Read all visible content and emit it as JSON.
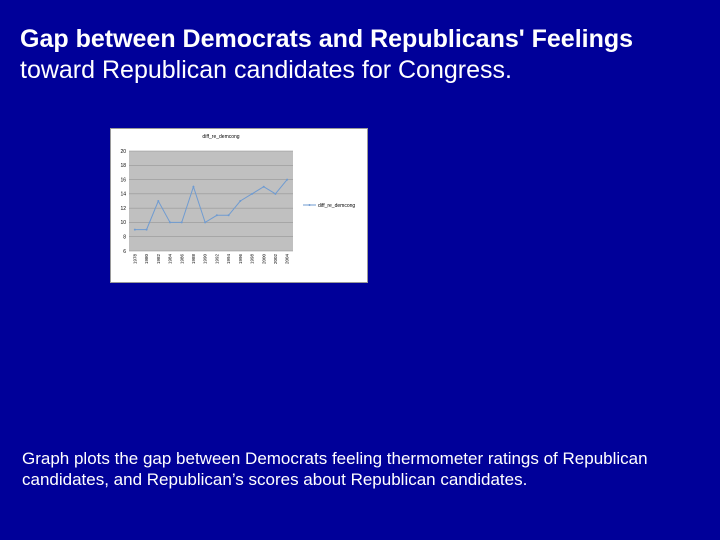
{
  "slide": {
    "title_line1": "Gap between Democrats and Republicans' Feelings",
    "title_line2": "toward Republican candidates for Congress.",
    "caption": "Graph plots the gap between Democrats feeling thermometer ratings of Republican candidates, and Republican’s scores about Republican candidates."
  },
  "chart_data": {
    "type": "line",
    "title": "diff_re_demcong",
    "x": [
      "1978",
      "1980",
      "1982",
      "1984",
      "1986",
      "1988",
      "1990",
      "1992",
      "1994",
      "1996",
      "1998",
      "2000",
      "2002",
      "2004"
    ],
    "series": [
      {
        "name": "diff_re_demcong",
        "values": [
          9,
          9,
          13,
          10,
          10,
          15,
          10,
          11,
          11,
          13,
          14,
          15,
          14,
          16
        ]
      }
    ],
    "ylim": [
      6,
      20
    ],
    "yticks": [
      6,
      8,
      10,
      12,
      14,
      16,
      18,
      20
    ],
    "grid": true,
    "legend": "right",
    "colors": {
      "line": "#6f9bd1",
      "plot_bg": "#c0c0c0",
      "gridline": "#8c8c8c"
    }
  }
}
